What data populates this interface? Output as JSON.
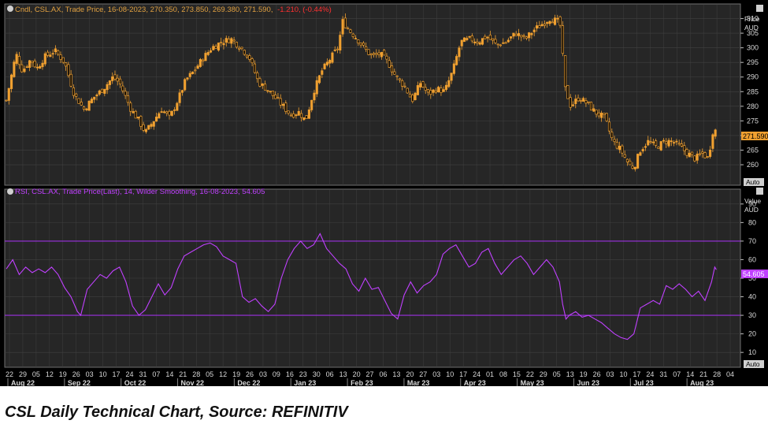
{
  "colors": {
    "background": "#000000",
    "panel": "#262626",
    "grid": "#404040",
    "candle": "#f0a030",
    "rsi": "#c040ff",
    "rsi_bands": "#9b30e0",
    "axis_text": "#d8d8d8",
    "change_negative": "#ff3030"
  },
  "price_panel": {
    "header": "Cndl, CSL.AX, Trade Price, 16-08-2023, 270.350, 273.850, 269.380, 271.590,",
    "change": "-1.210, (-0.44%)",
    "axis_title_1": "Price",
    "axis_title_2": "AUD",
    "last_value": "271.590",
    "auto_label": "Auto"
  },
  "rsi_panel": {
    "header": "RSI, CSL.AX, Trade Price(Last), 14, Wilder Smoothing, 16-08-2023, 54.605",
    "axis_title_1": "Value",
    "axis_title_2": "AUD",
    "last_value": "54.605",
    "auto_label": "Auto"
  },
  "caption": "CSL Daily Technical Chart, Source: REFINITIV",
  "chart_data": [
    {
      "type": "candlestick",
      "ylabel": "Price AUD",
      "ylim": [
        253,
        315
      ],
      "y_ticks": [
        260,
        265,
        270,
        275,
        280,
        285,
        290,
        295,
        300,
        305,
        310
      ],
      "grid": true,
      "x_day_labels": [
        "22",
        "29",
        "05",
        "12",
        "19",
        "26",
        "03",
        "10",
        "17",
        "24",
        "31",
        "07",
        "14",
        "21",
        "28",
        "05",
        "12",
        "19",
        "26",
        "03",
        "09",
        "16",
        "23",
        "30",
        "06",
        "13",
        "20",
        "27",
        "06",
        "13",
        "20",
        "27",
        "03",
        "10",
        "17",
        "24",
        "01",
        "08",
        "15",
        "22",
        "29",
        "05",
        "13",
        "19",
        "26",
        "03",
        "10",
        "17",
        "24",
        "31",
        "07",
        "14",
        "21",
        "28",
        "04"
      ],
      "x_month_labels": [
        "Aug 22",
        "Sep 22",
        "Oct 22",
        "Nov 22",
        "Dec 22",
        "Jan 23",
        "Feb 23",
        "Mar 23",
        "Apr 23",
        "May 23",
        "Jun 23",
        "Jul 23",
        "Aug 23"
      ],
      "close_path": [
        [
          0,
          282
        ],
        [
          6,
          298
        ],
        [
          10,
          292
        ],
        [
          15,
          296
        ],
        [
          19,
          293
        ],
        [
          24,
          297
        ],
        [
          30,
          299
        ],
        [
          36,
          295
        ],
        [
          42,
          284
        ],
        [
          48,
          279
        ],
        [
          54,
          283
        ],
        [
          60,
          286
        ],
        [
          66,
          290
        ],
        [
          70,
          288
        ],
        [
          77,
          279
        ],
        [
          82,
          275
        ],
        [
          86,
          271
        ],
        [
          91,
          275
        ],
        [
          96,
          279
        ],
        [
          101,
          276
        ],
        [
          106,
          282
        ],
        [
          111,
          289
        ],
        [
          116,
          292
        ],
        [
          121,
          296
        ],
        [
          127,
          300
        ],
        [
          133,
          302
        ],
        [
          139,
          303
        ],
        [
          145,
          300
        ],
        [
          150,
          297
        ],
        [
          156,
          288
        ],
        [
          161,
          286
        ],
        [
          166,
          283
        ],
        [
          171,
          280
        ],
        [
          176,
          277
        ],
        [
          181,
          278
        ],
        [
          185,
          275
        ],
        [
          190,
          285
        ],
        [
          195,
          292
        ],
        [
          200,
          296
        ],
        [
          205,
          300
        ],
        [
          208,
          309
        ],
        [
          212,
          306
        ],
        [
          217,
          303
        ],
        [
          221,
          300
        ],
        [
          226,
          297
        ],
        [
          231,
          298
        ],
        [
          236,
          295
        ],
        [
          241,
          290
        ],
        [
          246,
          287
        ],
        [
          251,
          282
        ],
        [
          256,
          288
        ],
        [
          261,
          284
        ],
        [
          266,
          286
        ],
        [
          271,
          285
        ],
        [
          276,
          292
        ],
        [
          281,
          302
        ],
        [
          287,
          303
        ],
        [
          292,
          302
        ],
        [
          297,
          304
        ],
        [
          303,
          301
        ],
        [
          309,
          302
        ],
        [
          315,
          305
        ],
        [
          321,
          303
        ],
        [
          326,
          306
        ],
        [
          331,
          308
        ],
        [
          336,
          310
        ],
        [
          341,
          309
        ],
        [
          343,
          307
        ],
        [
          345,
          287
        ],
        [
          349,
          280
        ],
        [
          354,
          283
        ],
        [
          359,
          281
        ],
        [
          364,
          278
        ],
        [
          370,
          276
        ],
        [
          375,
          268
        ],
        [
          380,
          265
        ],
        [
          385,
          260
        ],
        [
          388,
          259
        ],
        [
          392,
          265
        ],
        [
          397,
          268
        ],
        [
          402,
          266
        ],
        [
          407,
          268
        ],
        [
          412,
          268
        ],
        [
          417,
          266
        ],
        [
          421,
          264
        ],
        [
          426,
          262
        ],
        [
          430,
          264
        ],
        [
          434,
          262
        ],
        [
          437,
          272
        ],
        [
          439,
          271.59
        ]
      ]
    },
    {
      "type": "line",
      "name": "RSI",
      "ylim": [
        2,
        98
      ],
      "y_ticks": [
        10,
        20,
        30,
        40,
        50,
        60,
        70,
        80,
        90
      ],
      "bands": [
        30,
        70
      ],
      "last_value": 54.605,
      "points": [
        [
          0,
          55
        ],
        [
          4,
          60
        ],
        [
          8,
          52
        ],
        [
          12,
          56
        ],
        [
          16,
          53
        ],
        [
          20,
          55
        ],
        [
          24,
          53
        ],
        [
          28,
          56
        ],
        [
          32,
          52
        ],
        [
          36,
          45
        ],
        [
          40,
          40
        ],
        [
          44,
          32
        ],
        [
          46,
          30
        ],
        [
          50,
          44
        ],
        [
          54,
          48
        ],
        [
          58,
          52
        ],
        [
          62,
          50
        ],
        [
          66,
          54
        ],
        [
          70,
          56
        ],
        [
          74,
          48
        ],
        [
          78,
          35
        ],
        [
          82,
          30
        ],
        [
          86,
          33
        ],
        [
          90,
          40
        ],
        [
          94,
          47
        ],
        [
          98,
          41
        ],
        [
          102,
          45
        ],
        [
          106,
          55
        ],
        [
          110,
          62
        ],
        [
          114,
          64
        ],
        [
          118,
          66
        ],
        [
          122,
          68
        ],
        [
          126,
          69
        ],
        [
          130,
          67
        ],
        [
          134,
          62
        ],
        [
          138,
          60
        ],
        [
          142,
          58
        ],
        [
          146,
          40
        ],
        [
          150,
          37
        ],
        [
          154,
          39
        ],
        [
          158,
          35
        ],
        [
          162,
          32
        ],
        [
          166,
          36
        ],
        [
          170,
          50
        ],
        [
          174,
          60
        ],
        [
          178,
          66
        ],
        [
          182,
          70
        ],
        [
          186,
          66
        ],
        [
          190,
          68
        ],
        [
          194,
          74
        ],
        [
          198,
          66
        ],
        [
          202,
          62
        ],
        [
          206,
          58
        ],
        [
          210,
          55
        ],
        [
          214,
          47
        ],
        [
          218,
          43
        ],
        [
          222,
          50
        ],
        [
          226,
          44
        ],
        [
          230,
          45
        ],
        [
          234,
          38
        ],
        [
          238,
          31
        ],
        [
          242,
          28
        ],
        [
          246,
          41
        ],
        [
          250,
          48
        ],
        [
          254,
          42
        ],
        [
          258,
          46
        ],
        [
          262,
          48
        ],
        [
          266,
          52
        ],
        [
          270,
          63
        ],
        [
          274,
          66
        ],
        [
          278,
          68
        ],
        [
          282,
          62
        ],
        [
          286,
          56
        ],
        [
          290,
          58
        ],
        [
          294,
          64
        ],
        [
          298,
          66
        ],
        [
          302,
          58
        ],
        [
          306,
          52
        ],
        [
          310,
          56
        ],
        [
          314,
          60
        ],
        [
          318,
          62
        ],
        [
          322,
          58
        ],
        [
          326,
          52
        ],
        [
          330,
          56
        ],
        [
          334,
          60
        ],
        [
          338,
          56
        ],
        [
          342,
          48
        ],
        [
          344,
          36
        ],
        [
          346,
          28
        ],
        [
          348,
          30
        ],
        [
          352,
          32
        ],
        [
          356,
          29
        ],
        [
          360,
          30
        ],
        [
          364,
          28
        ],
        [
          368,
          26
        ],
        [
          372,
          23
        ],
        [
          376,
          20
        ],
        [
          380,
          18
        ],
        [
          384,
          17
        ],
        [
          388,
          20
        ],
        [
          392,
          34
        ],
        [
          396,
          36
        ],
        [
          400,
          38
        ],
        [
          404,
          36
        ],
        [
          408,
          46
        ],
        [
          412,
          44
        ],
        [
          416,
          47
        ],
        [
          420,
          44
        ],
        [
          424,
          40
        ],
        [
          428,
          43
        ],
        [
          432,
          38
        ],
        [
          436,
          48
        ],
        [
          438,
          56
        ],
        [
          439,
          54.6
        ]
      ]
    }
  ]
}
